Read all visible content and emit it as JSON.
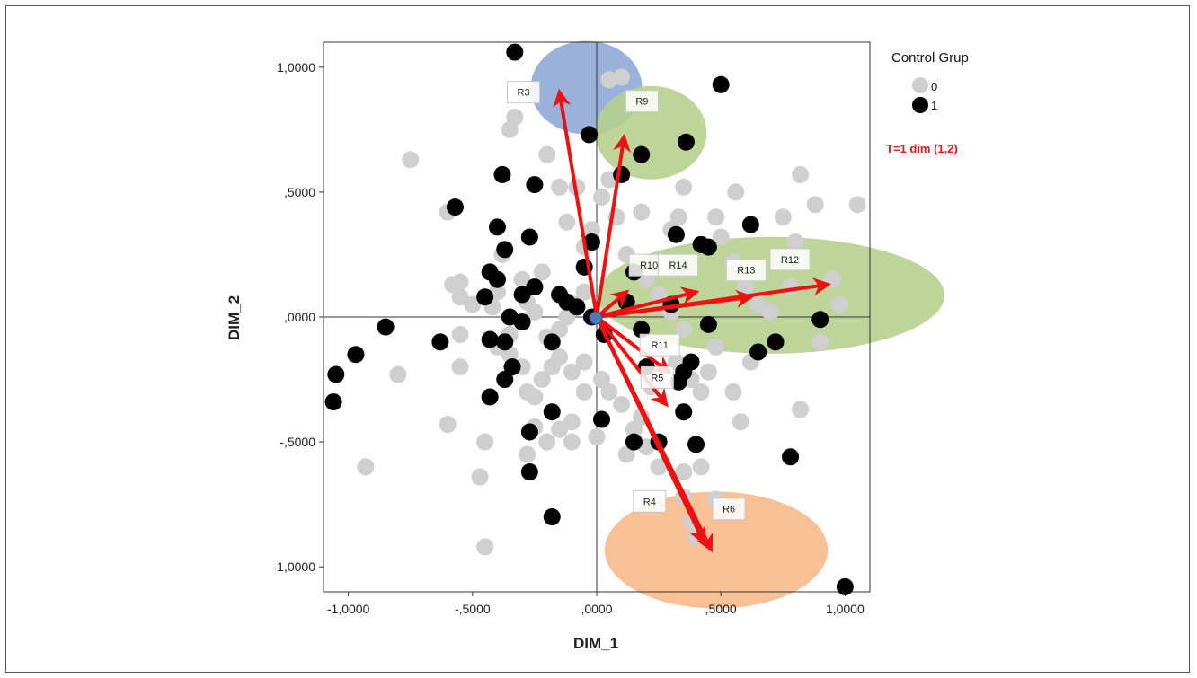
{
  "chart_data": {
    "type": "scatter",
    "xlabel": "DIM_1",
    "ylabel": "DIM_2",
    "xlim": [
      -1.1,
      1.1
    ],
    "ylim": [
      -1.1,
      1.1
    ],
    "xticks": [
      -1,
      -0.5,
      0,
      0.5,
      1
    ],
    "xtick_labels": [
      "-1,0000",
      "-,5000",
      ",0000",
      ",5000",
      "1,0000"
    ],
    "yticks": [
      1,
      0.5,
      0,
      -0.5,
      -1
    ],
    "ytick_labels": [
      "1,0000",
      ",5000",
      ",0000",
      "-,5000",
      "-1,0000"
    ],
    "legend": {
      "title": "Control Grup",
      "entries": [
        {
          "label": "0",
          "color": "#cfcfcf"
        },
        {
          "label": "1",
          "color": "#000000"
        }
      ],
      "placement": "top-right outside"
    },
    "annotation": "T=1  dim (1,2)",
    "series": [
      {
        "name": "0",
        "color": "#cfcfcf",
        "points": [
          [
            -0.75,
            0.63
          ],
          [
            -0.6,
            0.42
          ],
          [
            -0.58,
            0.13
          ],
          [
            -0.55,
            0.14
          ],
          [
            -0.55,
            0.08
          ],
          [
            -0.5,
            0.05
          ],
          [
            -0.55,
            -0.07
          ],
          [
            -0.55,
            -0.2
          ],
          [
            -0.8,
            -0.23
          ],
          [
            -0.93,
            -0.6
          ],
          [
            -0.6,
            -0.43
          ],
          [
            -0.45,
            -0.5
          ],
          [
            -0.47,
            -0.64
          ],
          [
            -0.45,
            -0.92
          ],
          [
            -0.42,
            0.04
          ],
          [
            -0.4,
            0.1
          ],
          [
            -0.38,
            0.25
          ],
          [
            -0.35,
            0.75
          ],
          [
            -0.33,
            0.8
          ],
          [
            -0.35,
            -0.07
          ],
          [
            -0.3,
            0.15
          ],
          [
            -0.28,
            0.06
          ],
          [
            -0.25,
            0.12
          ],
          [
            -0.22,
            0.18
          ],
          [
            -0.2,
            0.65
          ],
          [
            -0.25,
            0.02
          ],
          [
            -0.2,
            -0.08
          ],
          [
            -0.22,
            -0.25
          ],
          [
            -0.18,
            -0.2
          ],
          [
            -0.15,
            -0.16
          ],
          [
            -0.1,
            -0.22
          ],
          [
            -0.12,
            0.38
          ],
          [
            -0.08,
            0.52
          ],
          [
            -0.05,
            0.28
          ],
          [
            -0.05,
            0.1
          ],
          [
            -0.02,
            0.35
          ],
          [
            0.02,
            0.48
          ],
          [
            0.05,
            0.55
          ],
          [
            0.08,
            0.4
          ],
          [
            0.12,
            0.25
          ],
          [
            0.18,
            0.42
          ],
          [
            0.2,
            0.15
          ],
          [
            0.25,
            0.09
          ],
          [
            0.28,
            0.05
          ],
          [
            0.3,
            0.02
          ],
          [
            0.35,
            -0.05
          ],
          [
            0.32,
            -0.18
          ],
          [
            0.38,
            -0.25
          ],
          [
            0.42,
            -0.3
          ],
          [
            0.22,
            -0.28
          ],
          [
            0.18,
            -0.4
          ],
          [
            0.15,
            -0.45
          ],
          [
            0.1,
            -0.35
          ],
          [
            0.05,
            -0.3
          ],
          [
            0.02,
            -0.25
          ],
          [
            -0.05,
            -0.3
          ],
          [
            -0.1,
            -0.42
          ],
          [
            -0.15,
            -0.45
          ],
          [
            -0.25,
            -0.44
          ],
          [
            -0.28,
            -0.55
          ],
          [
            -0.2,
            -0.5
          ],
          [
            -0.1,
            -0.5
          ],
          [
            0.0,
            -0.48
          ],
          [
            0.12,
            -0.55
          ],
          [
            0.2,
            -0.52
          ],
          [
            0.25,
            -0.6
          ],
          [
            0.35,
            -0.62
          ],
          [
            0.42,
            -0.6
          ],
          [
            0.35,
            -0.72
          ],
          [
            0.48,
            -0.73
          ],
          [
            0.38,
            -0.82
          ],
          [
            0.4,
            -0.88
          ],
          [
            0.48,
            0.4
          ],
          [
            0.5,
            0.32
          ],
          [
            0.55,
            0.22
          ],
          [
            0.6,
            0.12
          ],
          [
            0.65,
            0.05
          ],
          [
            0.7,
            0.02
          ],
          [
            0.75,
            0.4
          ],
          [
            0.78,
            0.12
          ],
          [
            0.8,
            0.3
          ],
          [
            0.82,
            0.57
          ],
          [
            0.88,
            0.45
          ],
          [
            0.9,
            -0.1
          ],
          [
            0.95,
            0.15
          ],
          [
            0.98,
            0.05
          ],
          [
            1.05,
            0.45
          ],
          [
            0.56,
            0.5
          ],
          [
            0.35,
            0.52
          ],
          [
            0.33,
            0.4
          ],
          [
            0.3,
            0.35
          ],
          [
            0.62,
            -0.18
          ],
          [
            0.55,
            -0.3
          ],
          [
            0.45,
            -0.22
          ],
          [
            0.48,
            -0.12
          ],
          [
            0.82,
            -0.37
          ],
          [
            0.58,
            -0.42
          ],
          [
            0.05,
            0.95
          ],
          [
            0.1,
            0.96
          ],
          [
            -0.15,
            0.52
          ],
          [
            -0.28,
            -0.3
          ],
          [
            -0.3,
            -0.2
          ],
          [
            -0.35,
            -0.15
          ],
          [
            -0.4,
            -0.12
          ],
          [
            -0.08,
            0.05
          ],
          [
            -0.12,
            0.0
          ],
          [
            -0.15,
            -0.05
          ],
          [
            -0.18,
            -0.1
          ],
          [
            -0.25,
            -0.32
          ],
          [
            -0.05,
            -0.18
          ]
        ]
      },
      {
        "name": "1",
        "color": "#000000",
        "points": [
          [
            -0.33,
            1.06
          ],
          [
            -0.03,
            0.73
          ],
          [
            0.18,
            0.65
          ],
          [
            0.36,
            0.7
          ],
          [
            0.5,
            0.93
          ],
          [
            -0.38,
            0.57
          ],
          [
            -0.25,
            0.53
          ],
          [
            -0.57,
            0.44
          ],
          [
            -0.4,
            0.36
          ],
          [
            -0.37,
            0.27
          ],
          [
            -0.27,
            0.32
          ],
          [
            -0.43,
            0.18
          ],
          [
            -0.4,
            0.15
          ],
          [
            -0.3,
            0.09
          ],
          [
            -0.25,
            0.12
          ],
          [
            -0.15,
            0.09
          ],
          [
            -0.12,
            0.06
          ],
          [
            -0.05,
            0.2
          ],
          [
            -0.02,
            0.3
          ],
          [
            0.1,
            0.57
          ],
          [
            -0.45,
            0.08
          ],
          [
            -0.35,
            0.0
          ],
          [
            -0.3,
            -0.02
          ],
          [
            -0.37,
            -0.1
          ],
          [
            -0.43,
            -0.09
          ],
          [
            -0.34,
            -0.2
          ],
          [
            -0.37,
            -0.25
          ],
          [
            -0.43,
            -0.32
          ],
          [
            -0.63,
            -0.1
          ],
          [
            -0.85,
            -0.04
          ],
          [
            -0.97,
            -0.15
          ],
          [
            -1.05,
            -0.23
          ],
          [
            -1.06,
            -0.34
          ],
          [
            -0.18,
            -0.1
          ],
          [
            -0.27,
            -0.46
          ],
          [
            -0.27,
            -0.62
          ],
          [
            -0.18,
            -0.38
          ],
          [
            -0.18,
            -0.8
          ],
          [
            0.02,
            -0.41
          ],
          [
            0.15,
            -0.5
          ],
          [
            0.25,
            -0.5
          ],
          [
            0.4,
            -0.51
          ],
          [
            0.35,
            -0.22
          ],
          [
            0.32,
            0.33
          ],
          [
            0.42,
            0.29
          ],
          [
            0.45,
            0.28
          ],
          [
            0.62,
            0.37
          ],
          [
            0.3,
            0.05
          ],
          [
            0.45,
            -0.03
          ],
          [
            0.65,
            -0.14
          ],
          [
            0.72,
            -0.1
          ],
          [
            0.9,
            -0.01
          ],
          [
            0.78,
            -0.56
          ],
          [
            1.0,
            -1.08
          ],
          [
            0.38,
            -0.18
          ],
          [
            0.33,
            -0.26
          ],
          [
            0.35,
            -0.38
          ],
          [
            0.2,
            -0.2
          ],
          [
            0.18,
            -0.05
          ],
          [
            0.12,
            0.06
          ],
          [
            -0.08,
            0.04
          ],
          [
            -0.02,
            0.0
          ],
          [
            0.03,
            -0.07
          ],
          [
            0.15,
            0.18
          ]
        ]
      }
    ],
    "vectors": [
      {
        "label": "R3",
        "x": -0.15,
        "y": 0.9
      },
      {
        "label": "R9",
        "x": 0.11,
        "y": 0.72
      },
      {
        "label": "R10",
        "x": 0.12,
        "y": 0.1
      },
      {
        "label": "R14",
        "x": 0.4,
        "y": 0.1
      },
      {
        "label": "R13",
        "x": 0.62,
        "y": 0.08
      },
      {
        "label": "R12",
        "x": 0.93,
        "y": 0.13
      },
      {
        "label": "R11",
        "x": 0.29,
        "y": -0.22
      },
      {
        "label": "R5",
        "x": 0.28,
        "y": -0.35
      },
      {
        "label": "R4",
        "x": 0.43,
        "y": -0.9
      },
      {
        "label": "R6",
        "x": 0.46,
        "y": -0.93
      }
    ],
    "highlight_groups": [
      {
        "color": "#8fa9d6",
        "members": [
          "R3"
        ]
      },
      {
        "color": "#b6d08e",
        "members": [
          "R9"
        ]
      },
      {
        "color": "#b6d08e",
        "members": [
          "R14",
          "R13",
          "R12"
        ]
      },
      {
        "color": "#f6b98a",
        "members": [
          "R4",
          "R6"
        ]
      }
    ]
  }
}
